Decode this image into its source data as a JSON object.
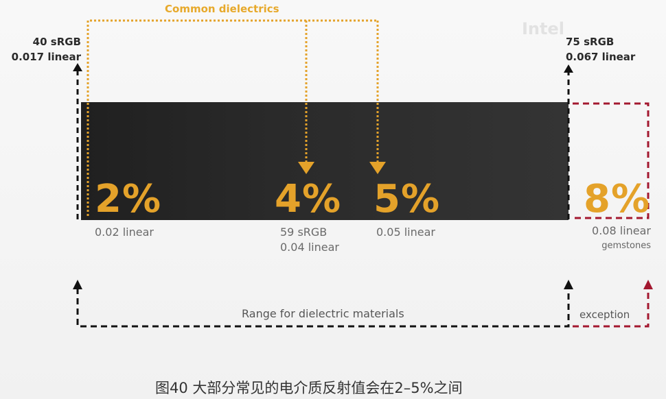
{
  "header": {
    "common_dielectrics": "Common dielectrics",
    "left_srgb": "40 sRGB",
    "left_linear": "0.017 linear",
    "right_srgb": "75 sRGB",
    "right_linear": "0.067 linear"
  },
  "values": [
    {
      "pct": "2%",
      "line1": "0.02 linear",
      "line2": ""
    },
    {
      "pct": "4%",
      "line1": "59 sRGB",
      "line2": "0.04 linear"
    },
    {
      "pct": "5%",
      "line1": "0.05 linear",
      "line2": ""
    },
    {
      "pct": "8%",
      "line1": "0.08 linear",
      "line2": "gemstones"
    }
  ],
  "range_label": "Range for dielectric materials",
  "exception_label": "exception",
  "caption": "图40 大部分常见的电介质反射值会在2–5%之间",
  "watermark": "Intel",
  "colors": {
    "accent_orange": "#e4a22a",
    "exception_red": "#a3182f",
    "dark_band": "#2a2a2a"
  }
}
